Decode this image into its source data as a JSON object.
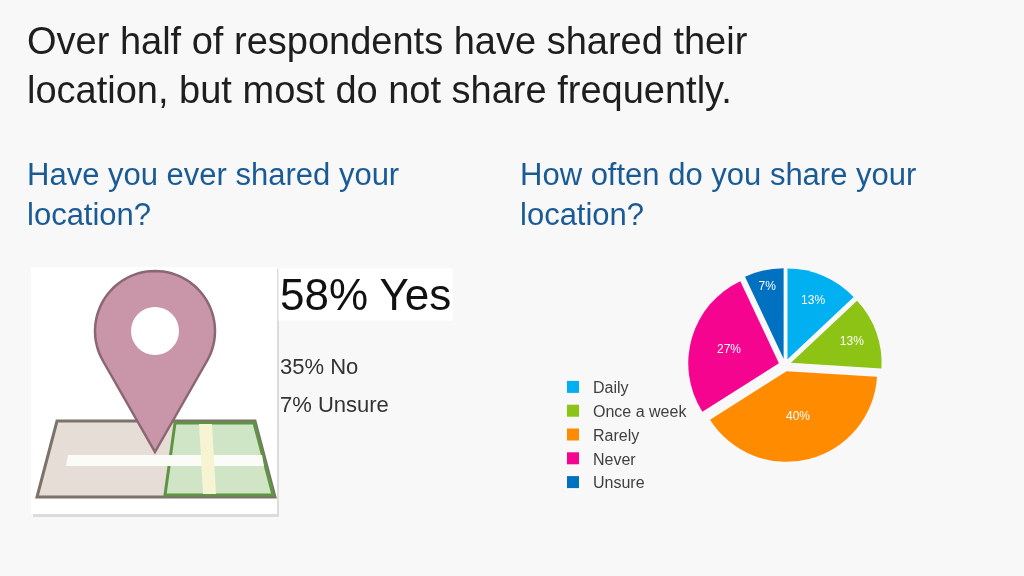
{
  "chart_data": [
    {
      "type": "other",
      "title": "Over half of respondents have shared their location, but most do not share frequently.",
      "subtitle": "Have you ever shared your location?",
      "annotations": [
        "58% Yes",
        "35% No",
        "7% Unsure"
      ]
    },
    {
      "type": "pie",
      "title": "How often do you share your location?",
      "categories": [
        "Daily",
        "Once a week",
        "Rarely",
        "Never",
        "Unsure"
      ],
      "values": [
        13,
        13,
        40,
        27,
        7
      ],
      "colors": [
        "#00b0f0",
        "#8cc314",
        "#ff8c00",
        "#f5058f",
        "#0070c0"
      ],
      "value_labels": [
        "13%",
        "13%",
        "40%",
        "27%",
        "7%"
      ],
      "legend": "bottom left"
    }
  ]
}
